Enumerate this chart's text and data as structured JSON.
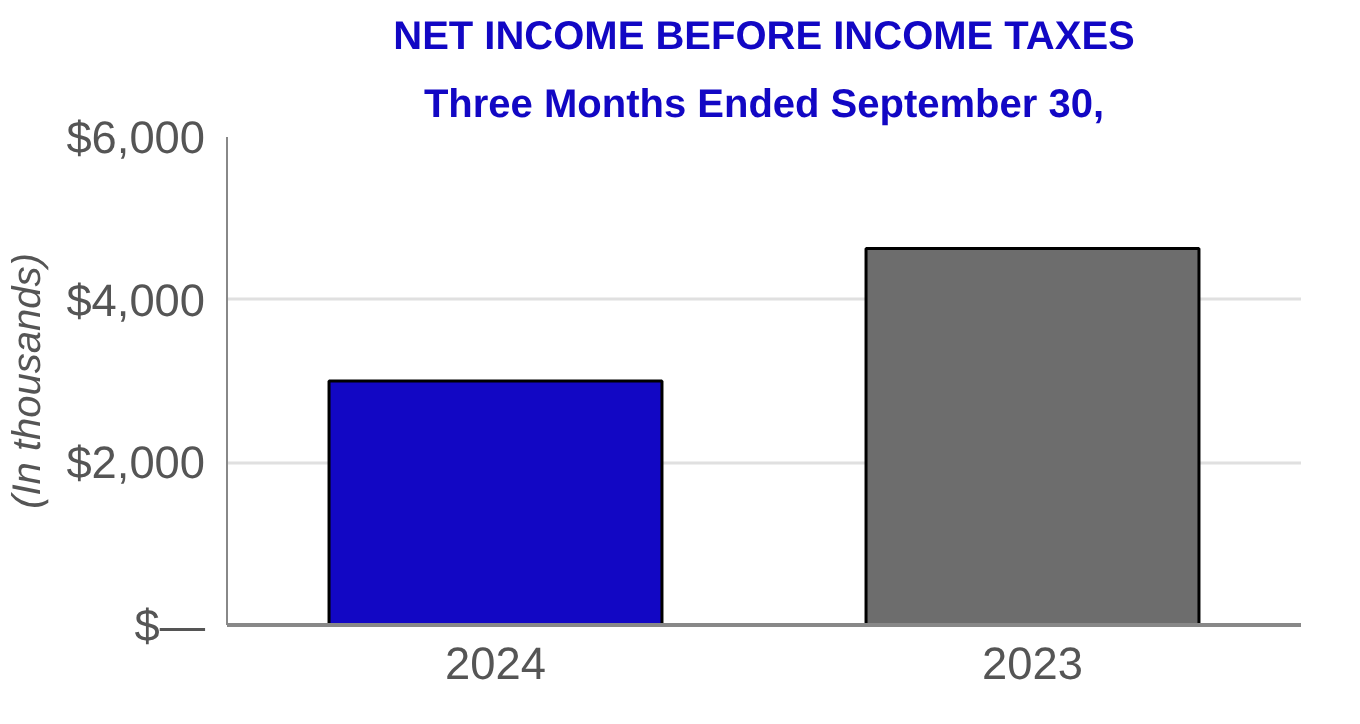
{
  "chart_data": {
    "type": "bar",
    "title": "NET INCOME BEFORE INCOME TAXES",
    "subtitle": "Three Months Ended September 30,",
    "ylabel": "(In thousands)",
    "categories": [
      "2024",
      "2023"
    ],
    "values": [
      3000,
      4630
    ],
    "colors": [
      "#1207c4",
      "#6d6d6d"
    ],
    "ylim": [
      0,
      6000
    ],
    "yticks": [
      {
        "value": 0,
        "label": "$—"
      },
      {
        "value": 2000,
        "label": "$2,000"
      },
      {
        "value": 4000,
        "label": "$4,000"
      },
      {
        "value": 6000,
        "label": "$6,000"
      }
    ],
    "grid": "y"
  }
}
